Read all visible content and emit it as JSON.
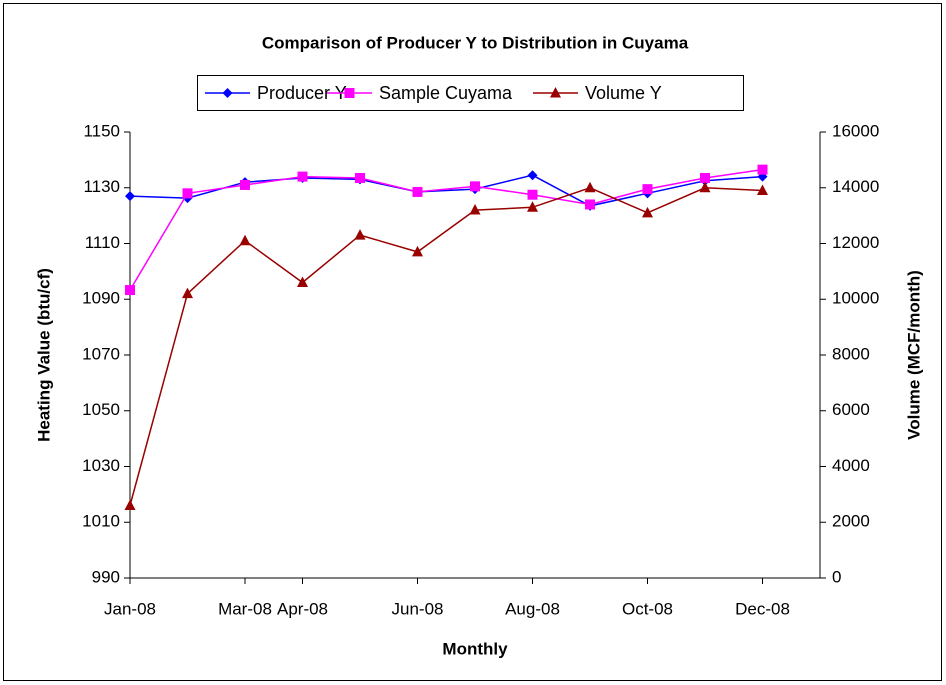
{
  "chart_data": {
    "type": "line",
    "title": "Comparison of Producer Y to Distribution in Cuyama",
    "xlabel": "Monthly",
    "ylabel": "Heating Value (btu/cf)",
    "y2label": "Volume (MCF/month)",
    "legend": "top",
    "grid": false,
    "x": [
      "2008-01",
      "2008-02",
      "2008-03",
      "2008-04",
      "2008-05",
      "2008-06",
      "2008-07",
      "2008-08",
      "2008-09",
      "2008-10",
      "2008-11",
      "2008-12"
    ],
    "xlim": [
      "2008-01",
      "2009-01"
    ],
    "xticks": [
      {
        "value": "2008-01",
        "label": "Jan-08"
      },
      {
        "value": "2008-03",
        "label": "Mar-08"
      },
      {
        "value": "2008-04",
        "label": "Apr-08"
      },
      {
        "value": "2008-06",
        "label": "Jun-08"
      },
      {
        "value": "2008-08",
        "label": "Aug-08"
      },
      {
        "value": "2008-10",
        "label": "Oct-08"
      },
      {
        "value": "2008-12",
        "label": "Dec-08"
      }
    ],
    "ylim": [
      990,
      1150
    ],
    "yticks": [
      990,
      1010,
      1030,
      1050,
      1070,
      1090,
      1110,
      1130,
      1150
    ],
    "y2lim": [
      0,
      16000
    ],
    "y2ticks": [
      0,
      2000,
      4000,
      6000,
      8000,
      10000,
      12000,
      14000,
      16000
    ],
    "series": [
      {
        "name": "Producer Y",
        "color": "#0000ff",
        "marker": "diamond",
        "axis": "y",
        "values": [
          1127,
          1126.3,
          1132,
          1133.5,
          1133,
          1128.5,
          1129.5,
          1134.5,
          1123.5,
          1128,
          1132.5,
          1134
        ]
      },
      {
        "name": "Sample Cuyama",
        "color": "#ff00ff",
        "marker": "square",
        "axis": "y",
        "values": [
          1093.3,
          1128,
          1131,
          1134,
          1133.5,
          1128.5,
          1130.5,
          1127.5,
          1124,
          1129.5,
          1133.5,
          1136.5
        ]
      },
      {
        "name": "Volume Y",
        "color": "#990000",
        "marker": "triangle",
        "axis": "y2",
        "values": [
          2600,
          10200,
          12100,
          10600,
          12300,
          11700,
          13200,
          13300,
          14000,
          13100,
          14000,
          13900
        ]
      }
    ]
  }
}
